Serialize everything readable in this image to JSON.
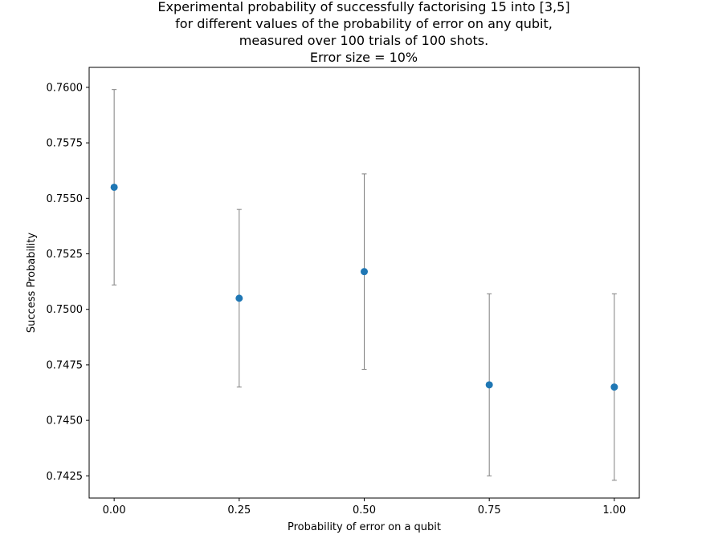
{
  "chart_data": {
    "type": "scatter",
    "title_lines": [
      "Experimental probability of successfully factorising 15 into [3,5]",
      "for different values of the probability of error on any qubit,",
      "measured over 100 trials of 100 shots.",
      "Error size = 10%"
    ],
    "xlabel": "Probability of error on a qubit",
    "ylabel": "Success Probability",
    "xlim": [
      -0.05,
      1.05
    ],
    "ylim": [
      0.7415,
      0.7609
    ],
    "x_ticks": [
      {
        "value": 0.0,
        "label": "0.00"
      },
      {
        "value": 0.25,
        "label": "0.25"
      },
      {
        "value": 0.5,
        "label": "0.50"
      },
      {
        "value": 0.75,
        "label": "0.75"
      },
      {
        "value": 1.0,
        "label": "1.00"
      }
    ],
    "y_ticks": [
      {
        "value": 0.7425,
        "label": "0.7425"
      },
      {
        "value": 0.745,
        "label": "0.7450"
      },
      {
        "value": 0.7475,
        "label": "0.7475"
      },
      {
        "value": 0.75,
        "label": "0.7500"
      },
      {
        "value": 0.7525,
        "label": "0.7525"
      },
      {
        "value": 0.755,
        "label": "0.7550"
      },
      {
        "value": 0.7575,
        "label": "0.7575"
      },
      {
        "value": 0.76,
        "label": "0.7600"
      }
    ],
    "points": [
      {
        "x": 0.0,
        "y": 0.7555,
        "err_low": 0.7511,
        "err_high": 0.7599
      },
      {
        "x": 0.25,
        "y": 0.7505,
        "err_low": 0.7465,
        "err_high": 0.7545
      },
      {
        "x": 0.5,
        "y": 0.7517,
        "err_low": 0.7473,
        "err_high": 0.7561
      },
      {
        "x": 0.75,
        "y": 0.7466,
        "err_low": 0.7425,
        "err_high": 0.7507
      },
      {
        "x": 1.0,
        "y": 0.7465,
        "err_low": 0.7423,
        "err_high": 0.7507
      }
    ],
    "grid": false,
    "marker_color": "#1f77b4",
    "errorbar_color": "#808080"
  }
}
